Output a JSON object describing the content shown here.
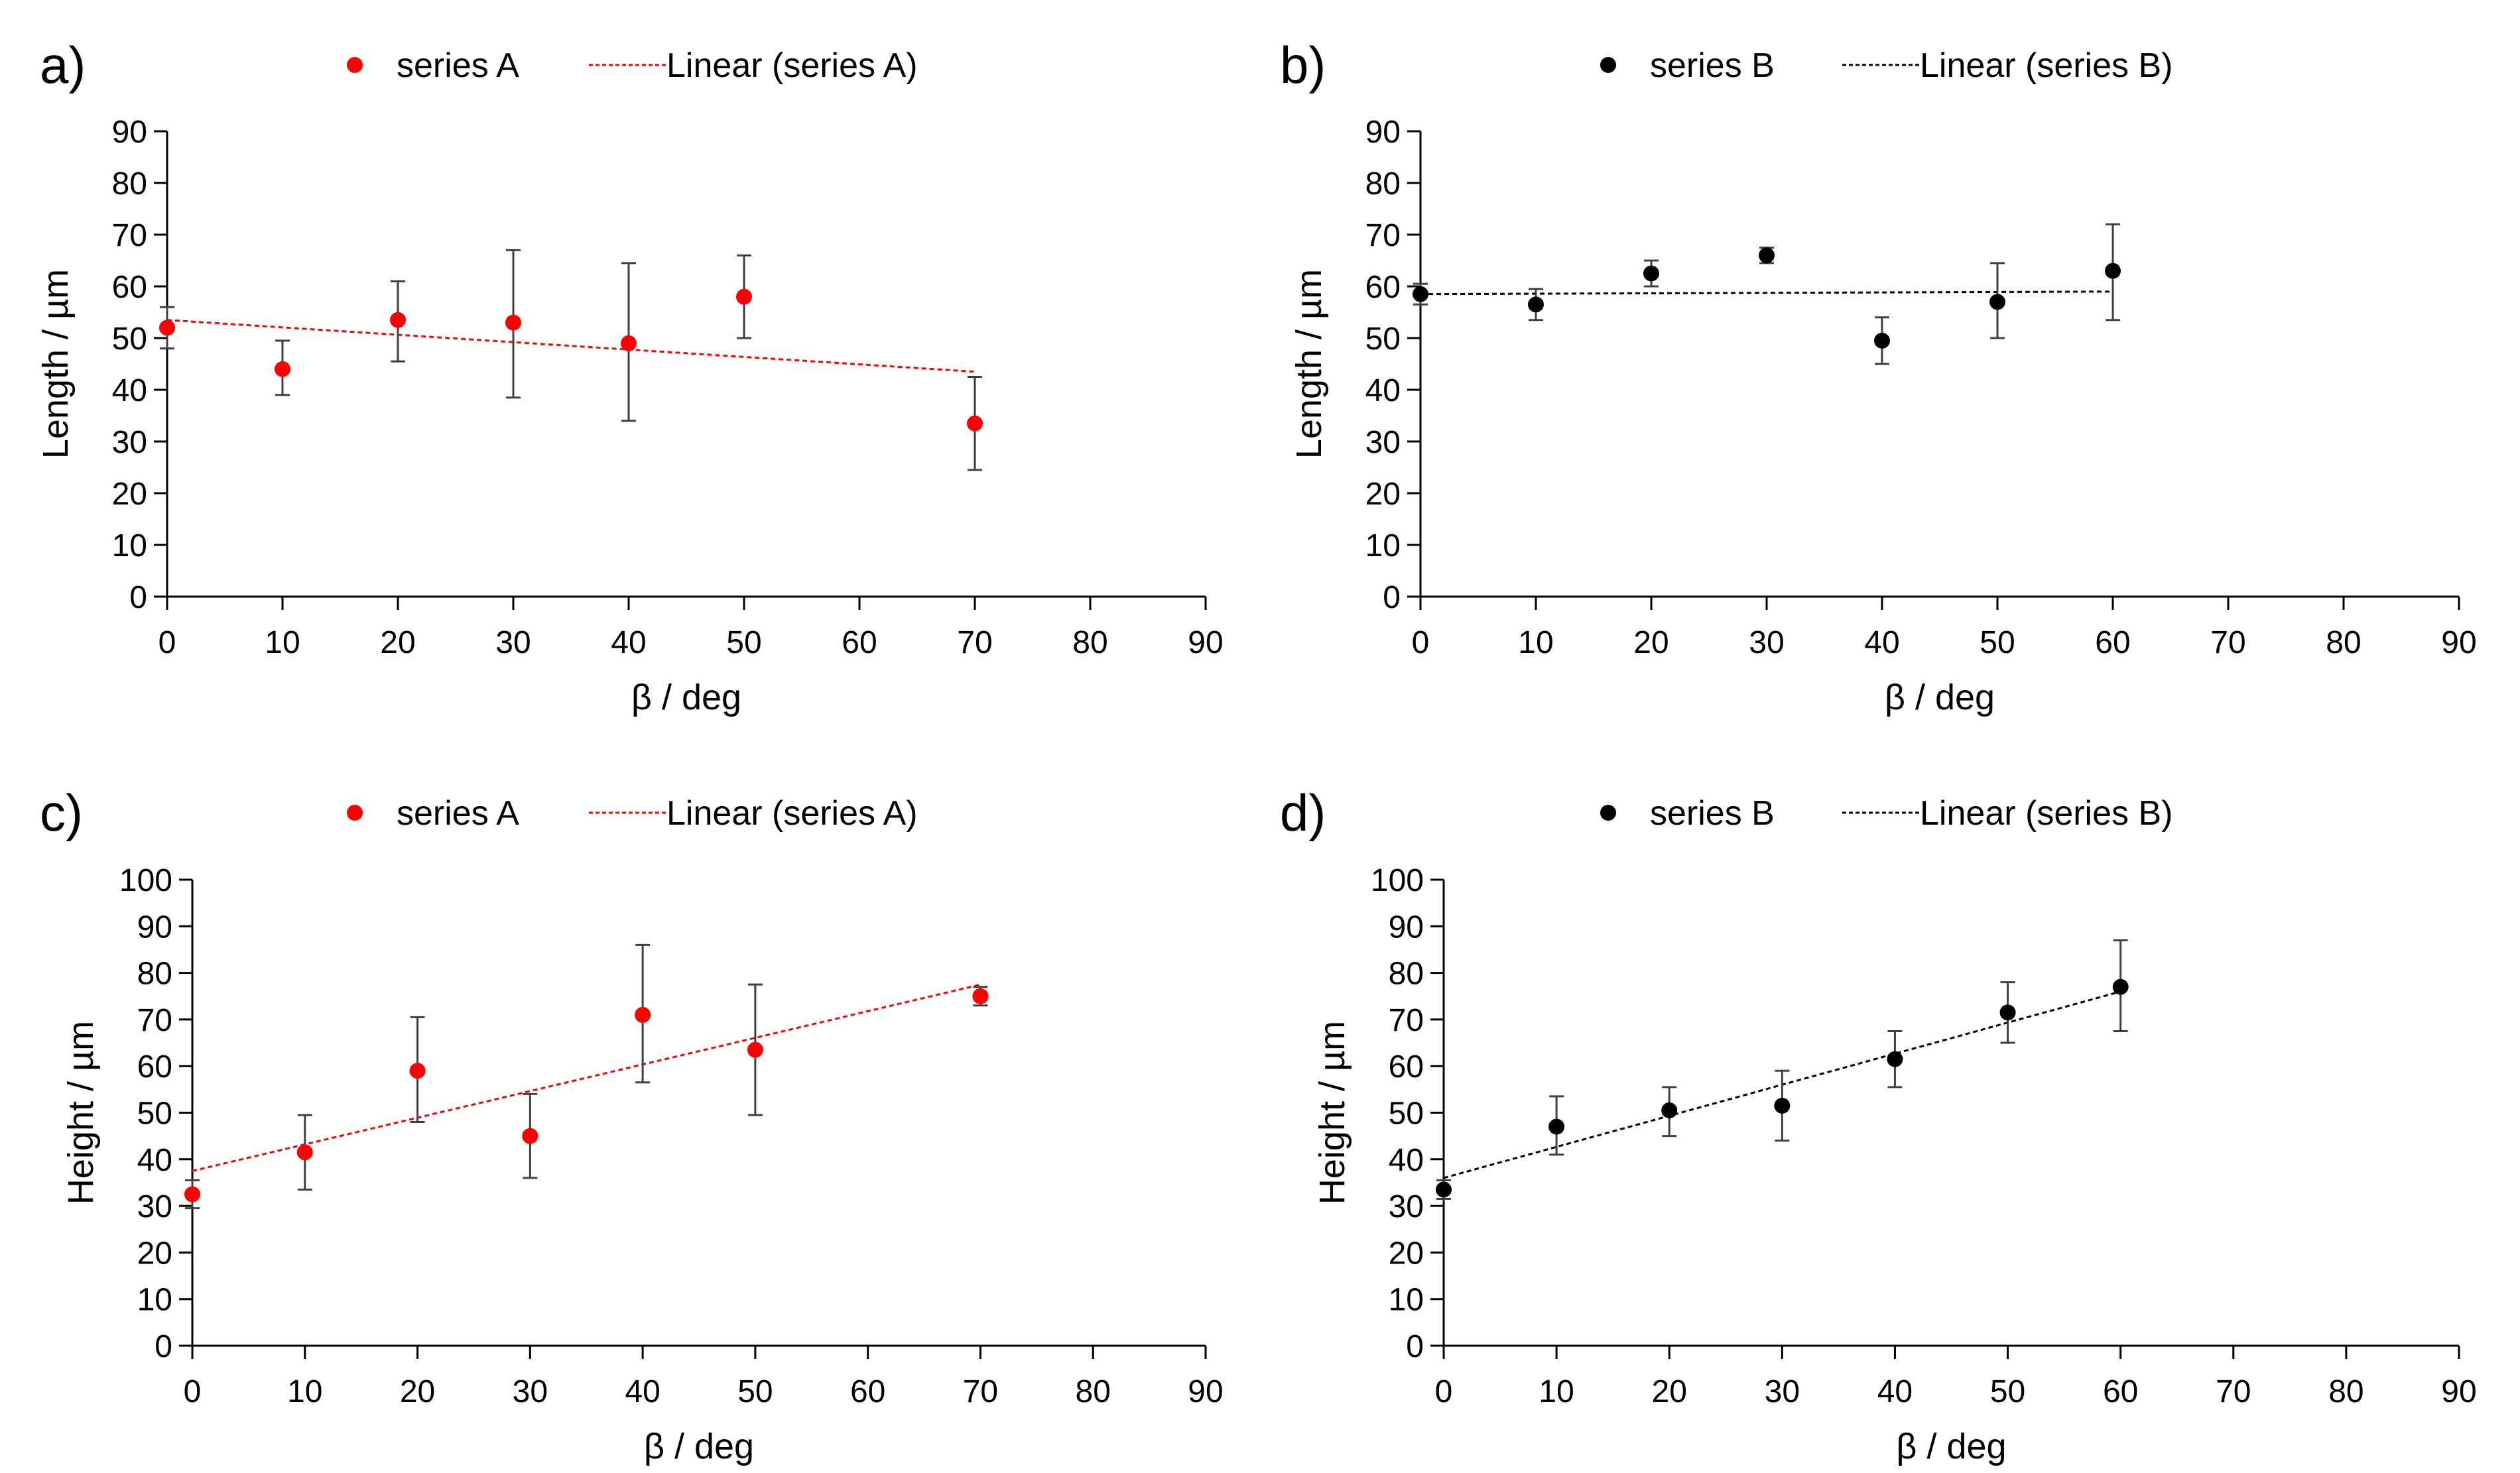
{
  "colors": {
    "series_A": "#ff0000",
    "series_B": "#000000",
    "axis": "#000000",
    "error_bar": "#404040"
  },
  "chart_data": [
    {
      "panel_label": "a)",
      "type": "scatter",
      "xlabel": "β / deg",
      "ylabel": "Length / µm",
      "xlim": [
        0,
        90
      ],
      "ylim": [
        0,
        90
      ],
      "x_ticks": [
        "0",
        "10",
        "20",
        "30",
        "40",
        "50",
        "60",
        "70",
        "80",
        "90"
      ],
      "y_ticks": [
        "0",
        "10",
        "20",
        "30",
        "40",
        "50",
        "60",
        "70",
        "80",
        "90"
      ],
      "grid": false,
      "legend": {
        "placement": "top",
        "series_label": "series A",
        "trend_label": "Linear (series A)"
      },
      "color": "#ff0000",
      "x": [
        0,
        10,
        20,
        30,
        40,
        50,
        70
      ],
      "y": [
        52,
        44,
        53.5,
        53,
        49,
        58,
        33.5
      ],
      "err_low": [
        48,
        39,
        45.5,
        38.5,
        34,
        50,
        24.5
      ],
      "err_high": [
        56,
        49.5,
        61,
        67,
        64.5,
        66,
        42.5
      ],
      "trendline": {
        "x": [
          0,
          70
        ],
        "y": [
          53.5,
          43.5
        ]
      }
    },
    {
      "panel_label": "b)",
      "type": "scatter",
      "xlabel": "β / deg",
      "ylabel": "Length / µm",
      "xlim": [
        0,
        90
      ],
      "ylim": [
        0,
        90
      ],
      "x_ticks": [
        "0",
        "10",
        "20",
        "30",
        "40",
        "50",
        "60",
        "70",
        "80",
        "90"
      ],
      "y_ticks": [
        "0",
        "10",
        "20",
        "30",
        "40",
        "50",
        "60",
        "70",
        "80",
        "90"
      ],
      "grid": false,
      "legend": {
        "placement": "top",
        "series_label": "series B",
        "trend_label": "Linear (series B)"
      },
      "color": "#000000",
      "x": [
        0,
        10,
        20,
        30,
        40,
        50,
        60
      ],
      "y": [
        58.5,
        56.5,
        62.5,
        66,
        49.5,
        57,
        63
      ],
      "err_low": [
        56.5,
        53.5,
        60,
        64.5,
        45,
        50,
        53.5
      ],
      "err_high": [
        60.5,
        59.5,
        65,
        67.5,
        54,
        64.5,
        72
      ],
      "trendline": {
        "x": [
          0,
          60
        ],
        "y": [
          58.5,
          59
        ]
      }
    },
    {
      "panel_label": "c)",
      "type": "scatter",
      "xlabel": "β / deg",
      "ylabel": "Height / µm",
      "xlim": [
        0,
        90
      ],
      "ylim": [
        0,
        100
      ],
      "x_ticks": [
        "0",
        "10",
        "20",
        "30",
        "40",
        "50",
        "60",
        "70",
        "80",
        "90"
      ],
      "y_ticks": [
        "0",
        "10",
        "20",
        "30",
        "40",
        "50",
        "60",
        "70",
        "80",
        "90",
        "100"
      ],
      "grid": false,
      "legend": {
        "placement": "top",
        "series_label": "series A",
        "trend_label": "Linear (series A)"
      },
      "color": "#ff0000",
      "x": [
        0,
        10,
        20,
        30,
        40,
        50,
        70
      ],
      "y": [
        32.5,
        41.5,
        59,
        45,
        71,
        63.5,
        75
      ],
      "err_low": [
        29.5,
        33.5,
        48,
        36,
        56.5,
        49.5,
        73
      ],
      "err_high": [
        35.5,
        49.5,
        70.5,
        54,
        86,
        77.5,
        77
      ],
      "trendline": {
        "x": [
          0,
          70
        ],
        "y": [
          37.5,
          77.5
        ]
      }
    },
    {
      "panel_label": "d)",
      "type": "scatter",
      "xlabel": "β / deg",
      "ylabel": "Height / µm",
      "xlim": [
        0,
        90
      ],
      "ylim": [
        0,
        100
      ],
      "x_ticks": [
        "0",
        "10",
        "20",
        "30",
        "40",
        "50",
        "60",
        "70",
        "80",
        "90"
      ],
      "y_ticks": [
        "0",
        "10",
        "20",
        "30",
        "40",
        "50",
        "60",
        "70",
        "80",
        "90",
        "100"
      ],
      "grid": false,
      "legend": {
        "placement": "top",
        "series_label": "series B",
        "trend_label": "Linear (series B)"
      },
      "color": "#000000",
      "x": [
        0,
        10,
        20,
        30,
        40,
        50,
        60
      ],
      "y": [
        33.5,
        47,
        50.5,
        51.5,
        61.5,
        71.5,
        77
      ],
      "err_low": [
        31.5,
        41,
        45,
        44,
        55.5,
        65,
        67.5
      ],
      "err_high": [
        35.5,
        53.5,
        55.5,
        59,
        67.5,
        78,
        87
      ],
      "trendline": {
        "x": [
          0,
          60
        ],
        "y": [
          36,
          76
        ]
      }
    }
  ]
}
